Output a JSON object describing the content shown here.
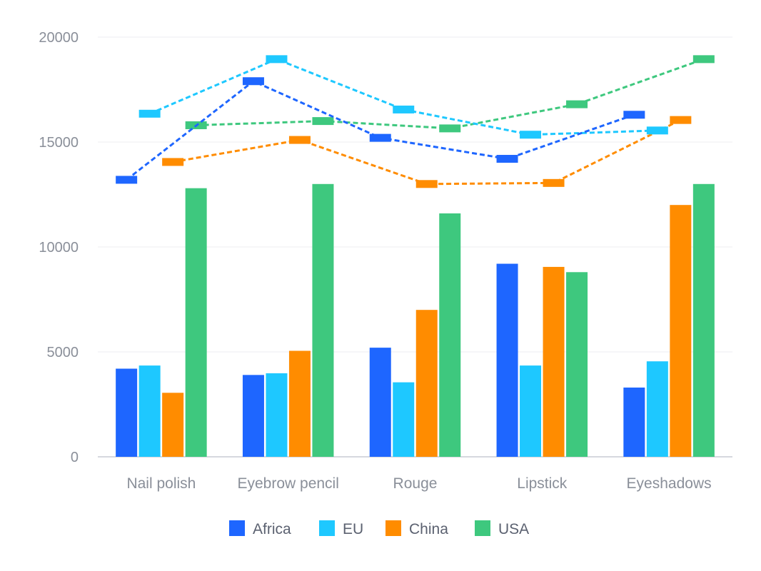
{
  "chart_data": {
    "type": "bar",
    "title": "",
    "xlabel": "",
    "ylabel": "",
    "ylim": [
      0,
      20000
    ],
    "yticks": [
      0,
      5000,
      10000,
      15000,
      20000
    ],
    "grid": true,
    "legend_position": "bottom-center",
    "categories": [
      "Nail polish",
      "Eyebrow pencil",
      "Rouge",
      "Lipstick",
      "Eyeshadows"
    ],
    "bar_series": [
      {
        "name": "Africa",
        "color": "#1e66ff",
        "values": [
          4200,
          3900,
          5200,
          9200,
          3300
        ]
      },
      {
        "name": "EU",
        "color": "#1ec8ff",
        "values": [
          4350,
          3980,
          3550,
          4350,
          4550
        ]
      },
      {
        "name": "China",
        "color": "#ff8c00",
        "values": [
          3050,
          5050,
          7000,
          9050,
          12000
        ]
      },
      {
        "name": "USA",
        "color": "#3ec87e",
        "values": [
          12800,
          13000,
          11600,
          8800,
          13000
        ]
      }
    ],
    "line_series": [
      {
        "name": "Africa",
        "color": "#1e66ff",
        "values": [
          13200,
          17900,
          15200,
          14200,
          16300
        ]
      },
      {
        "name": "EU",
        "color": "#1ec8ff",
        "values": [
          16350,
          18950,
          16550,
          15350,
          15550
        ]
      },
      {
        "name": "China",
        "color": "#ff8c00",
        "values": [
          14050,
          15100,
          13000,
          13050,
          16050
        ]
      },
      {
        "name": "USA",
        "color": "#3ec87e",
        "values": [
          15800,
          16000,
          15650,
          16800,
          18950
        ]
      }
    ],
    "legend": [
      "Africa",
      "EU",
      "China",
      "USA"
    ]
  }
}
